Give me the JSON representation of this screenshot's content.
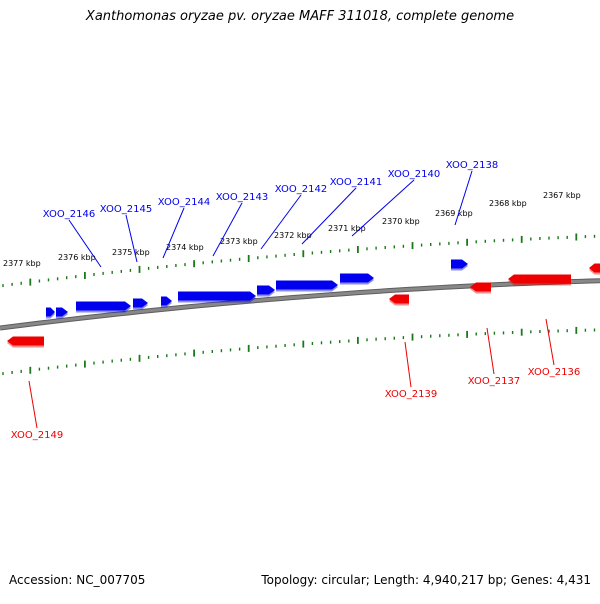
{
  "title": "Xanthomonas oryzae pv. oryzae MAFF 311018, complete genome",
  "footer": {
    "accession": "Accession: NC_007705",
    "summary": "Topology: circular; Length: 4,940,217 bp; Genes: 4,431"
  },
  "colors": {
    "forward": "#0000ee",
    "reverse": "#ee0000",
    "backbone": "#888888",
    "ticks": "#1a7a1a"
  },
  "scale_labels": [
    "2377 kbp",
    "2376 kbp",
    "2375 kbp",
    "2374 kbp",
    "2373 kbp",
    "2372 kbp",
    "2371 kbp",
    "2370 kbp",
    "2369 kbp",
    "2368 kbp",
    "2367 kbp"
  ],
  "genes_forward": [
    {
      "label": "XOO_2146"
    },
    {
      "label": "XOO_2145"
    },
    {
      "label": "XOO_2144"
    },
    {
      "label": "XOO_2143"
    },
    {
      "label": "XOO_2142"
    },
    {
      "label": "XOO_2141"
    },
    {
      "label": "XOO_2140"
    },
    {
      "label": "XOO_2138"
    }
  ],
  "genes_reverse": [
    {
      "label": "XOO_2149"
    },
    {
      "label": "XOO_2139"
    },
    {
      "label": "XOO_2137"
    },
    {
      "label": "XOO_2136"
    }
  ]
}
